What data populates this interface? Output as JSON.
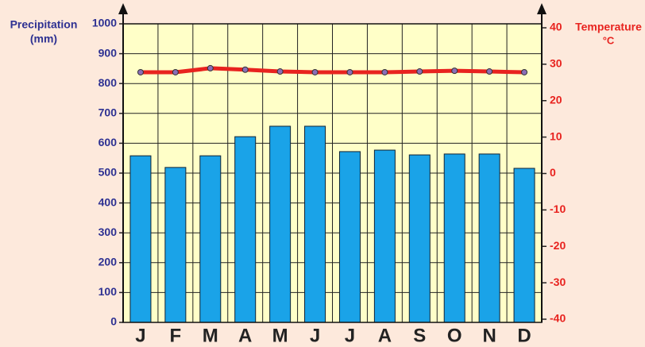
{
  "chart_data": {
    "type": "bar",
    "categories": [
      "J",
      "F",
      "M",
      "A",
      "M",
      "J",
      "J",
      "A",
      "S",
      "O",
      "N",
      "D"
    ],
    "ylabel": [
      "Precipitation",
      "(mm)"
    ],
    "y2label": [
      "Temperature",
      "°C"
    ],
    "series": [
      {
        "type": "bar",
        "color": "#1aa3e8",
        "values": [
          558,
          519,
          558,
          622,
          657,
          657,
          572,
          577,
          561,
          564,
          564,
          516
        ]
      },
      {
        "type": "line",
        "axis": "y2",
        "color": "#e8231f",
        "values": [
          27.8,
          27.8,
          28.9,
          28.5,
          28.0,
          27.8,
          27.8,
          27.8,
          28.0,
          28.2,
          28.0,
          27.8
        ]
      }
    ],
    "ylim": [
      0,
      1000
    ],
    "yticks": [
      0,
      100,
      200,
      300,
      400,
      500,
      600,
      700,
      800,
      900,
      1000
    ],
    "y2lim": [
      -40,
      40
    ],
    "y2ticks": [
      -40,
      -30,
      -20,
      -10,
      0,
      10,
      20,
      30,
      40
    ],
    "grid": true
  }
}
